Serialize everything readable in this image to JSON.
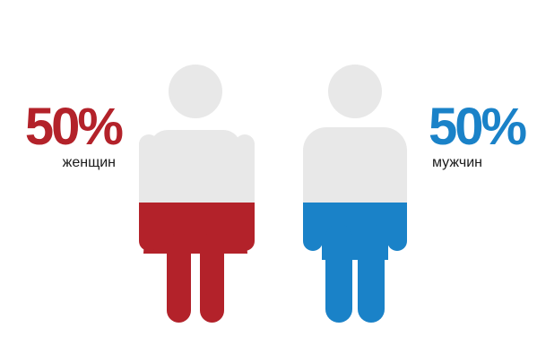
{
  "chart_data": {
    "type": "pictograph",
    "title": "",
    "series": [
      {
        "name": "женщин",
        "value": 50,
        "label": "50%",
        "color": "#b3222a",
        "icon": "woman-icon"
      },
      {
        "name": "мужчин",
        "value": 50,
        "label": "50%",
        "color": "#1a82c8",
        "icon": "man-icon"
      }
    ],
    "unfilled_color": "#e8e8e8"
  }
}
